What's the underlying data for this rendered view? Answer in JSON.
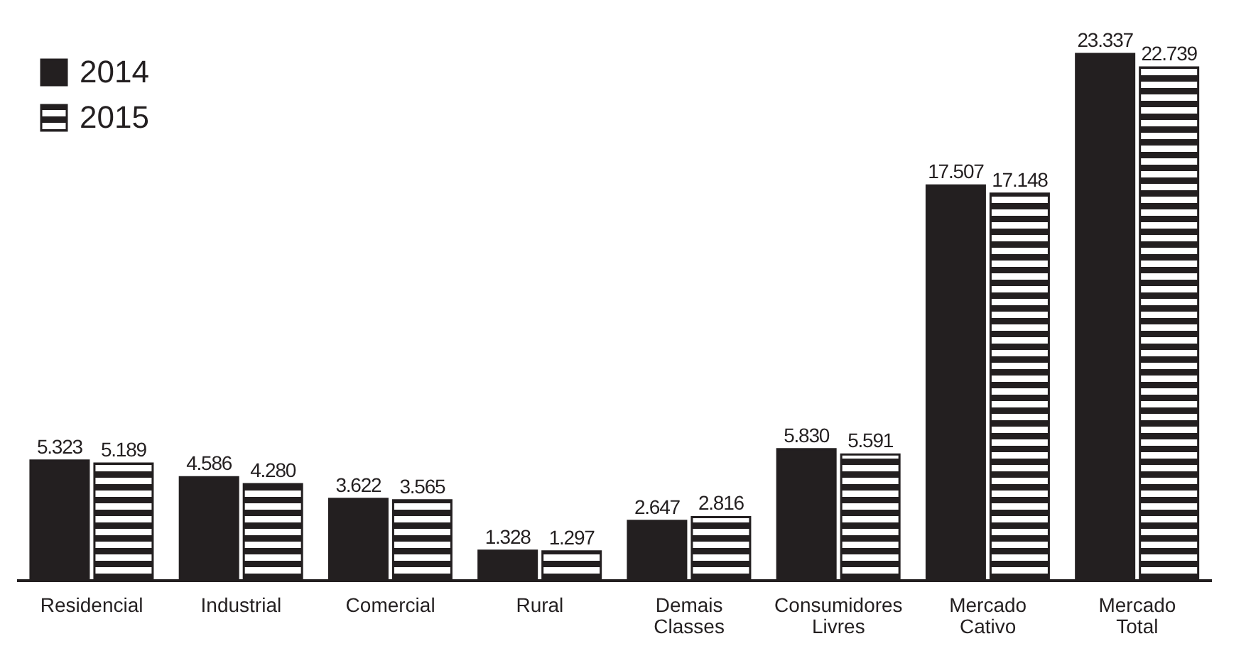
{
  "chart_data": {
    "type": "bar",
    "categories": [
      "Residencial",
      "Industrial",
      "Comercial",
      "Rural",
      "Demais Classes",
      "Consumidores Livres",
      "Mercado Cativo",
      "Mercado Total"
    ],
    "series": [
      {
        "name": "2014",
        "color": "#231f20",
        "values": [
          5323,
          4586,
          3622,
          1328,
          2647,
          5830,
          17507,
          23337
        ],
        "value_labels": [
          "5.323",
          "4.586",
          "3.622",
          "1.328",
          "2.647",
          "5.830",
          "17.507",
          "23.337"
        ]
      },
      {
        "name": "2015",
        "color": "#231f20",
        "values": [
          5189,
          4280,
          3565,
          1297,
          2816,
          5591,
          17148,
          22739
        ],
        "value_labels": [
          "5.189",
          "4.280",
          "3.565",
          "1.297",
          "2.816",
          "5.591",
          "17.148",
          "22.739"
        ]
      }
    ],
    "legend": "top left"
  }
}
